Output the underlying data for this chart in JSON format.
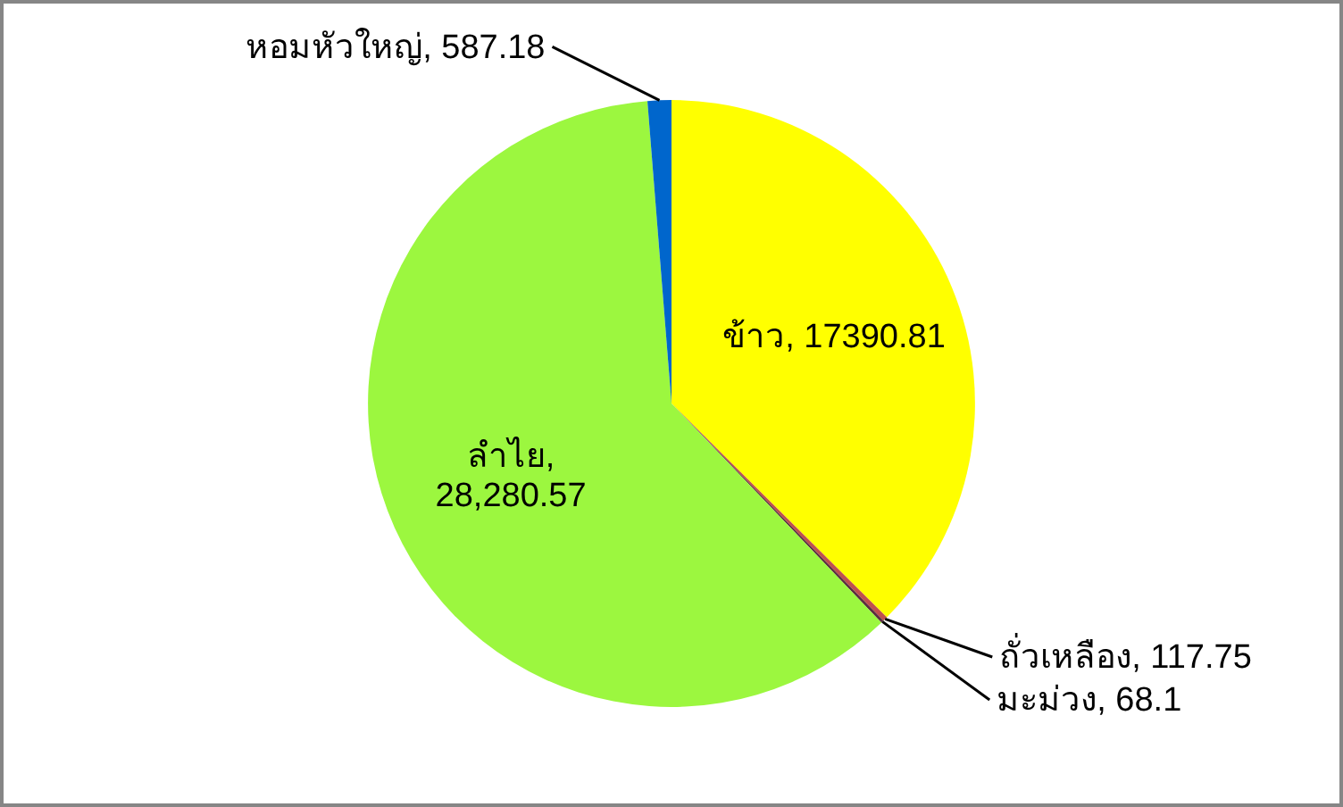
{
  "chart_data": {
    "type": "pie",
    "categories": [
      "ข้าว",
      "ถั่วเหลือง",
      "มะม่วง",
      "ลำไย",
      "หอมหัวใหญ่"
    ],
    "values": [
      17390.81,
      117.75,
      68.1,
      28280.57,
      587.18
    ],
    "value_labels": [
      ", 17390.81",
      ", 117.75",
      ", 68.1",
      ", 28,280.57",
      ", 587.18"
    ],
    "colors": [
      "#ffff00",
      "#c0504d",
      "#5c2e3e",
      "#9cf73f",
      "#0066cc"
    ]
  }
}
